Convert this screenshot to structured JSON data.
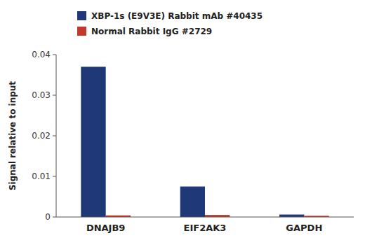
{
  "chart_data": {
    "type": "bar",
    "categories": [
      "DNAJB9",
      "EIF2AK3",
      "GAPDH"
    ],
    "series": [
      {
        "name": "XBP-1s (E9V3E) Rabbit mAb #40435",
        "color": "#1F3878",
        "values": [
          0.037,
          0.0075,
          0.0006
        ]
      },
      {
        "name": "Normal Rabbit IgG #2729",
        "color": "#C0392B",
        "values": [
          0.0004,
          0.0005,
          0.0003
        ]
      }
    ],
    "ylabel": "Signal relative to input",
    "ylim": [
      0,
      0.04
    ],
    "yticks": [
      0,
      0.01,
      0.02,
      0.03,
      0.04
    ],
    "legend": "top",
    "grid": false
  }
}
